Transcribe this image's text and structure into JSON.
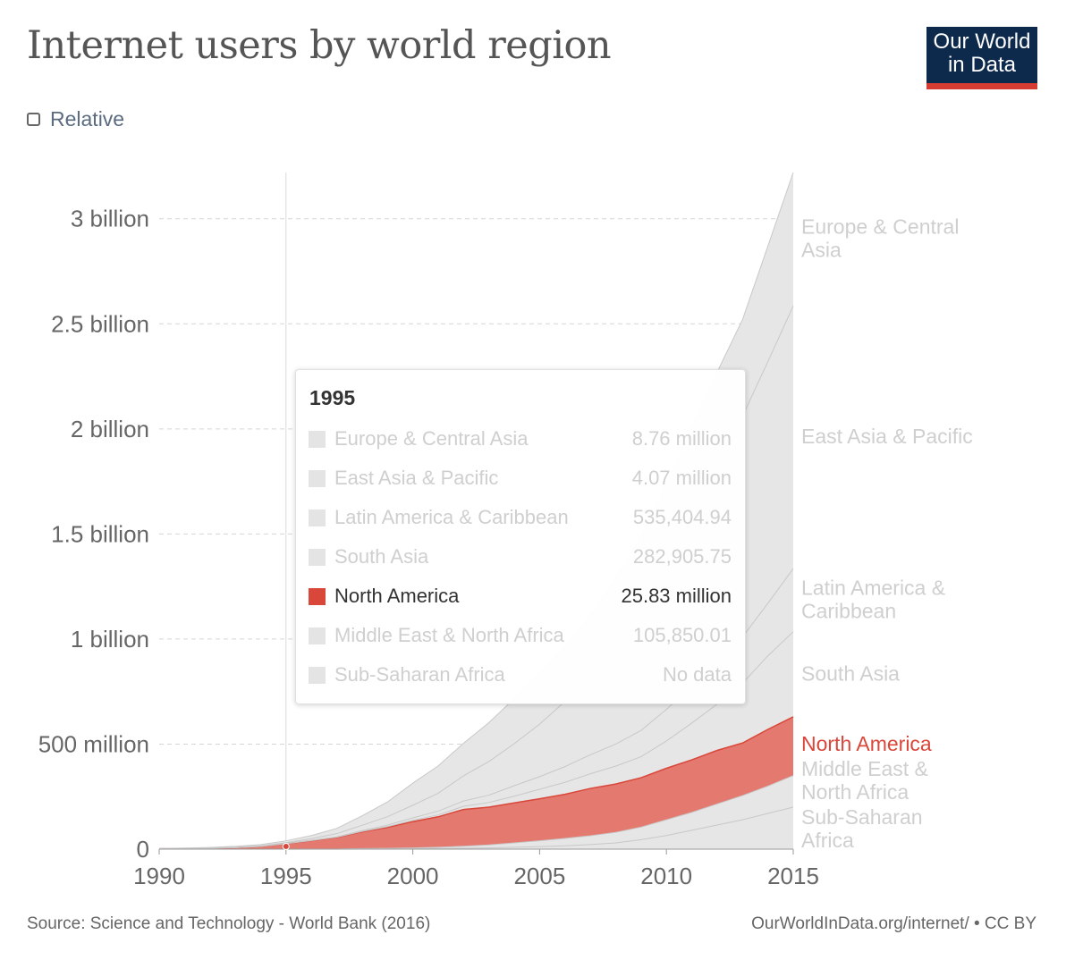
{
  "title": "Internet users by world region",
  "logo": {
    "line1": "Our World",
    "line2": "in Data"
  },
  "toggle": {
    "label": "Relative",
    "checked": false
  },
  "footer": {
    "source": "Source: Science and Technology - World Bank (2016)",
    "license": "OurWorldInData.org/internet/ • CC BY"
  },
  "colors": {
    "highlight": "#d9473a",
    "highlight_fill": "#e4796f",
    "muted_fill": "#e6e6e6",
    "muted_line": "#c8c8c8",
    "muted_label": "#cfcfcf"
  },
  "tooltip": {
    "year": "1995",
    "rows": [
      {
        "name": "Europe & Central Asia",
        "value": "8.76 million",
        "active": false
      },
      {
        "name": "East Asia & Pacific",
        "value": "4.07 million",
        "active": false
      },
      {
        "name": "Latin America & Caribbean",
        "value": "535,404.94",
        "active": false
      },
      {
        "name": "South Asia",
        "value": "282,905.75",
        "active": false
      },
      {
        "name": "North America",
        "value": "25.83 million",
        "active": true
      },
      {
        "name": "Middle East & North Africa",
        "value": "105,850.01",
        "active": false
      },
      {
        "name": "Sub-Saharan Africa",
        "value": "No data",
        "active": false
      }
    ]
  },
  "chart_data": {
    "type": "area",
    "stacked": true,
    "x": [
      1990,
      1991,
      1992,
      1993,
      1994,
      1995,
      1996,
      1997,
      1998,
      1999,
      2000,
      2001,
      2002,
      2003,
      2004,
      2005,
      2006,
      2007,
      2008,
      2009,
      2010,
      2011,
      2012,
      2013,
      2014,
      2015
    ],
    "y_ticks": [
      {
        "value": 0,
        "label": "0"
      },
      {
        "value": 500000000,
        "label": "500 million"
      },
      {
        "value": 1000000000,
        "label": "1 billion"
      },
      {
        "value": 1500000000,
        "label": "1.5 billion"
      },
      {
        "value": 2000000000,
        "label": "2 billion"
      },
      {
        "value": 2500000000,
        "label": "2.5 billion"
      },
      {
        "value": 3000000000,
        "label": "3 billion"
      }
    ],
    "x_ticks": [
      1990,
      1995,
      2000,
      2005,
      2010,
      2015
    ],
    "ylim": [
      0,
      3220000000
    ],
    "highlight_year": 1995,
    "highlight_value": 25830000,
    "series": [
      {
        "name": "Sub-Saharan Africa",
        "label_lines": [
          "Sub-Saharan",
          "Africa"
        ],
        "highlight": false,
        "values": [
          0,
          0,
          0,
          0,
          0,
          0,
          0,
          0,
          1000000,
          1000000,
          2000000,
          3000000,
          4000000,
          6000000,
          9000000,
          12000000,
          16000000,
          22000000,
          30000000,
          45000000,
          65000000,
          90000000,
          115000000,
          140000000,
          170000000,
          200000000
        ]
      },
      {
        "name": "Middle East & North Africa",
        "label_lines": [
          "Middle East &",
          "North Africa"
        ],
        "highlight": false,
        "values": [
          0,
          0,
          0,
          0,
          0,
          105850,
          300000,
          700000,
          1500000,
          2500000,
          4000000,
          6000000,
          10000000,
          14000000,
          21000000,
          28000000,
          35000000,
          42000000,
          50000000,
          60000000,
          75000000,
          85000000,
          100000000,
          115000000,
          130000000,
          150000000
        ]
      },
      {
        "name": "North America",
        "label_lines": [
          "North America"
        ],
        "highlight": true,
        "values": [
          1500000,
          2500000,
          4000000,
          7000000,
          13000000,
          25830000,
          40000000,
          55000000,
          80000000,
          100000000,
          125000000,
          145000000,
          175000000,
          180000000,
          190000000,
          200000000,
          210000000,
          225000000,
          230000000,
          235000000,
          245000000,
          250000000,
          255000000,
          250000000,
          270000000,
          280000000
        ]
      },
      {
        "name": "South Asia",
        "label_lines": [
          "South Asia"
        ],
        "highlight": false,
        "values": [
          0,
          0,
          0,
          0,
          0,
          282906,
          500000,
          1000000,
          2000000,
          4000000,
          6000000,
          9000000,
          15000000,
          22000000,
          32000000,
          45000000,
          57000000,
          70000000,
          85000000,
          100000000,
          130000000,
          175000000,
          220000000,
          285000000,
          350000000,
          405000000
        ]
      },
      {
        "name": "Latin America & Caribbean",
        "label_lines": [
          "Latin America &",
          "Caribbean"
        ],
        "highlight": false,
        "values": [
          0,
          0,
          0,
          0,
          0,
          535405,
          1000000,
          2000000,
          4000000,
          7000000,
          12000000,
          18000000,
          25000000,
          35000000,
          50000000,
          60000000,
          75000000,
          90000000,
          105000000,
          125000000,
          150000000,
          175000000,
          200000000,
          220000000,
          250000000,
          300000000
        ]
      },
      {
        "name": "East Asia & Pacific",
        "label_lines": [
          "East Asia & Pacific"
        ],
        "highlight": false,
        "values": [
          500000,
          700000,
          1200000,
          2000000,
          3000000,
          4070000,
          8000000,
          15000000,
          25000000,
          40000000,
          60000000,
          85000000,
          120000000,
          160000000,
          200000000,
          250000000,
          310000000,
          380000000,
          480000000,
          580000000,
          700000000,
          830000000,
          950000000,
          1050000000,
          1150000000,
          1250000000
        ]
      },
      {
        "name": "Europe & Central Asia",
        "label_lines": [
          "Europe & Central",
          "Asia"
        ],
        "highlight": false,
        "values": [
          1000000,
          2000000,
          3000000,
          4500000,
          6000000,
          8760000,
          15000000,
          25000000,
          45000000,
          70000000,
          105000000,
          130000000,
          155000000,
          185000000,
          215000000,
          240000000,
          260000000,
          285000000,
          310000000,
          340000000,
          370000000,
          400000000,
          430000000,
          460000000,
          550000000,
          635000000
        ]
      }
    ]
  }
}
